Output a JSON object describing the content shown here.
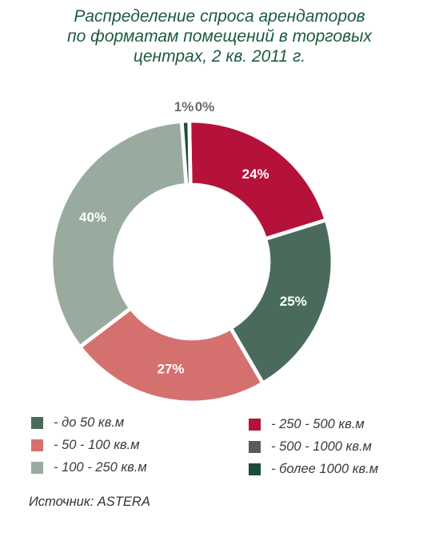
{
  "title_lines": [
    "Распределение спроса арендаторов",
    "по форматам помещений в торговых",
    "центрах, 2 кв. 2011 г."
  ],
  "source": "Источник: ASTERA",
  "chart_data": {
    "type": "pie",
    "donut": true,
    "title": "Распределение спроса арендаторов по форматам помещений в торговых центрах, 2 кв. 2011 г.",
    "slices": [
      {
        "label": "- 250 - 500 кв.м",
        "value": 24,
        "display": "24%",
        "color": "#b5123a"
      },
      {
        "label": "- до 50 кв.м",
        "value": 25,
        "display": "25%",
        "color": "#4a6b5c"
      },
      {
        "label": "- 50 - 100 кв.м",
        "value": 27,
        "display": "27%",
        "color": "#d4716e"
      },
      {
        "label": "- 100 - 250 кв.м",
        "value": 40,
        "display": "40%",
        "color": "#98ab9e"
      },
      {
        "label": "- 500 - 1000 кв.м",
        "value": 0,
        "display": "0%",
        "color": "#5a5a5a"
      },
      {
        "label": "- более 1000 кв.м",
        "value": 1,
        "display": "1%",
        "color": "#1b4d38"
      }
    ],
    "legend": {
      "left": [
        "- до 50 кв.м",
        "- 50 - 100 кв.м",
        "- 100 - 250 кв.м"
      ],
      "right": [
        "- 250 - 500 кв.м",
        "- 500 - 1000 кв.м",
        "- более 1000 кв.м"
      ]
    }
  }
}
